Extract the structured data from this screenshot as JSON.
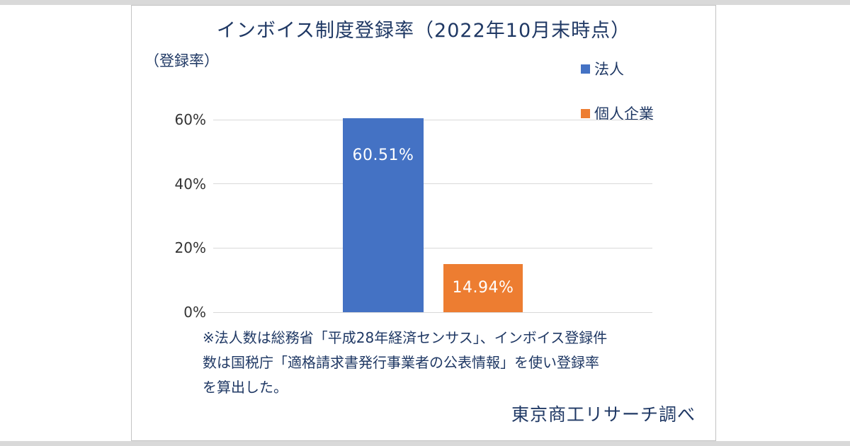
{
  "chart_data": {
    "type": "bar",
    "title": "インボイス制度登録率（2022年10月末時点）",
    "ylabel": "（登録率）",
    "xlabel": "",
    "ylim": [
      0,
      60
    ],
    "yticks": [
      0,
      20,
      40,
      60
    ],
    "ytick_labels": [
      "0%",
      "20%",
      "40%",
      "60%"
    ],
    "grid": true,
    "legend_position": "top-right",
    "series": [
      {
        "name": "法人",
        "value": 60.51,
        "label": "60.51%",
        "color": "#4472c4"
      },
      {
        "name": "個人企業",
        "value": 14.94,
        "label": "14.94%",
        "color": "#ed7d31"
      }
    ]
  },
  "footnote": {
    "lines": [
      "※法人数は総務省「平成28年経済センサス」、インボイス登録件",
      "数は国税庁「適格請求書発行事業者の公表情報」を使い登録率",
      "を算出した。"
    ]
  },
  "credit": "東京商工リサーチ調べ",
  "colors": {
    "title_text": "#1f3864",
    "corporate_bar": "#4472c4",
    "individual_bar": "#ed7d31",
    "gridline": "#d9d9d9",
    "axis_text": "#333333",
    "strip": "#d9d9d9"
  }
}
